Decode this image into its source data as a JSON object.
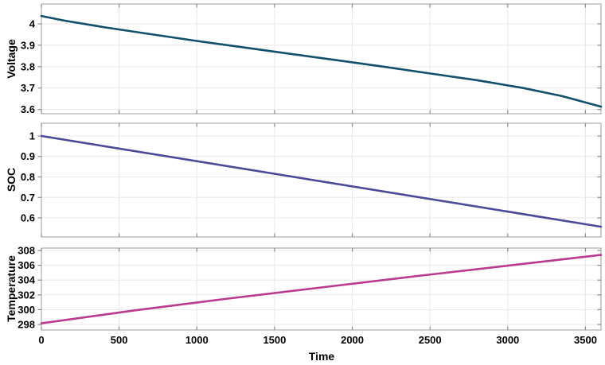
{
  "figure": {
    "background": "#ffffff"
  },
  "styles": {
    "grid_color": "#e8e8e8",
    "axis_color": "#9c9c9c",
    "tick_color": "#8a8a8a",
    "label_color": "#000000"
  },
  "chart_data": [
    {
      "type": "line",
      "ylabel": "Voltage",
      "line_color": "#11506a",
      "ylim": [
        3.58,
        4.093
      ],
      "yticks": [
        3.6,
        3.7,
        3.8,
        3.9,
        4
      ],
      "ytick_labels": [
        "3.6",
        "3.7",
        "3.8",
        "3.9",
        "4"
      ],
      "xlim": [
        0,
        3600
      ],
      "xticks": [
        0,
        500,
        1000,
        1500,
        2000,
        2500,
        3000,
        3500
      ],
      "xtick_labels": [
        "0",
        "500",
        "1000",
        "1500",
        "2000",
        "2500",
        "3000",
        "3500"
      ],
      "show_xtick_labels": false,
      "grid": true,
      "points": [
        [
          0,
          4.037
        ],
        [
          150,
          4.015
        ],
        [
          400,
          3.985
        ],
        [
          700,
          3.952
        ],
        [
          1000,
          3.92
        ],
        [
          1300,
          3.89
        ],
        [
          1600,
          3.86
        ],
        [
          1900,
          3.83
        ],
        [
          2200,
          3.8
        ],
        [
          2500,
          3.768
        ],
        [
          2800,
          3.737
        ],
        [
          3100,
          3.7
        ],
        [
          3350,
          3.662
        ],
        [
          3600,
          3.613
        ]
      ]
    },
    {
      "type": "line",
      "ylabel": "SOC",
      "line_color": "#4c4999",
      "ylim": [
        0.507,
        1.062
      ],
      "yticks": [
        0.6,
        0.7,
        0.8,
        0.9,
        1
      ],
      "ytick_labels": [
        "0.6",
        "0.7",
        "0.8",
        "0.9",
        "1"
      ],
      "xlim": [
        0,
        3600
      ],
      "xticks": [
        0,
        500,
        1000,
        1500,
        2000,
        2500,
        3000,
        3500
      ],
      "xtick_labels": [
        "0",
        "500",
        "1000",
        "1500",
        "2000",
        "2500",
        "3000",
        "3500"
      ],
      "show_xtick_labels": false,
      "grid": true,
      "points": [
        [
          0,
          1.0
        ],
        [
          3600,
          0.557
        ]
      ]
    },
    {
      "type": "line",
      "ylabel": "Temperature",
      "xlabel": "Time",
      "line_color": "#bb3a91",
      "ylim": [
        297.25,
        308.32
      ],
      "yticks": [
        298,
        300,
        302,
        304,
        306,
        308
      ],
      "ytick_labels": [
        "298",
        "300",
        "302",
        "304",
        "306",
        "308"
      ],
      "xlim": [
        0,
        3600
      ],
      "xticks": [
        0,
        500,
        1000,
        1500,
        2000,
        2500,
        3000,
        3500
      ],
      "xtick_labels": [
        "0",
        "500",
        "1000",
        "1500",
        "2000",
        "2500",
        "3000",
        "3500"
      ],
      "show_xtick_labels": true,
      "grid": true,
      "points": [
        [
          0,
          298.15
        ],
        [
          600,
          299.9
        ],
        [
          1200,
          301.5
        ],
        [
          1800,
          303.0
        ],
        [
          2400,
          304.5
        ],
        [
          3000,
          305.95
        ],
        [
          3600,
          307.4
        ]
      ]
    }
  ]
}
